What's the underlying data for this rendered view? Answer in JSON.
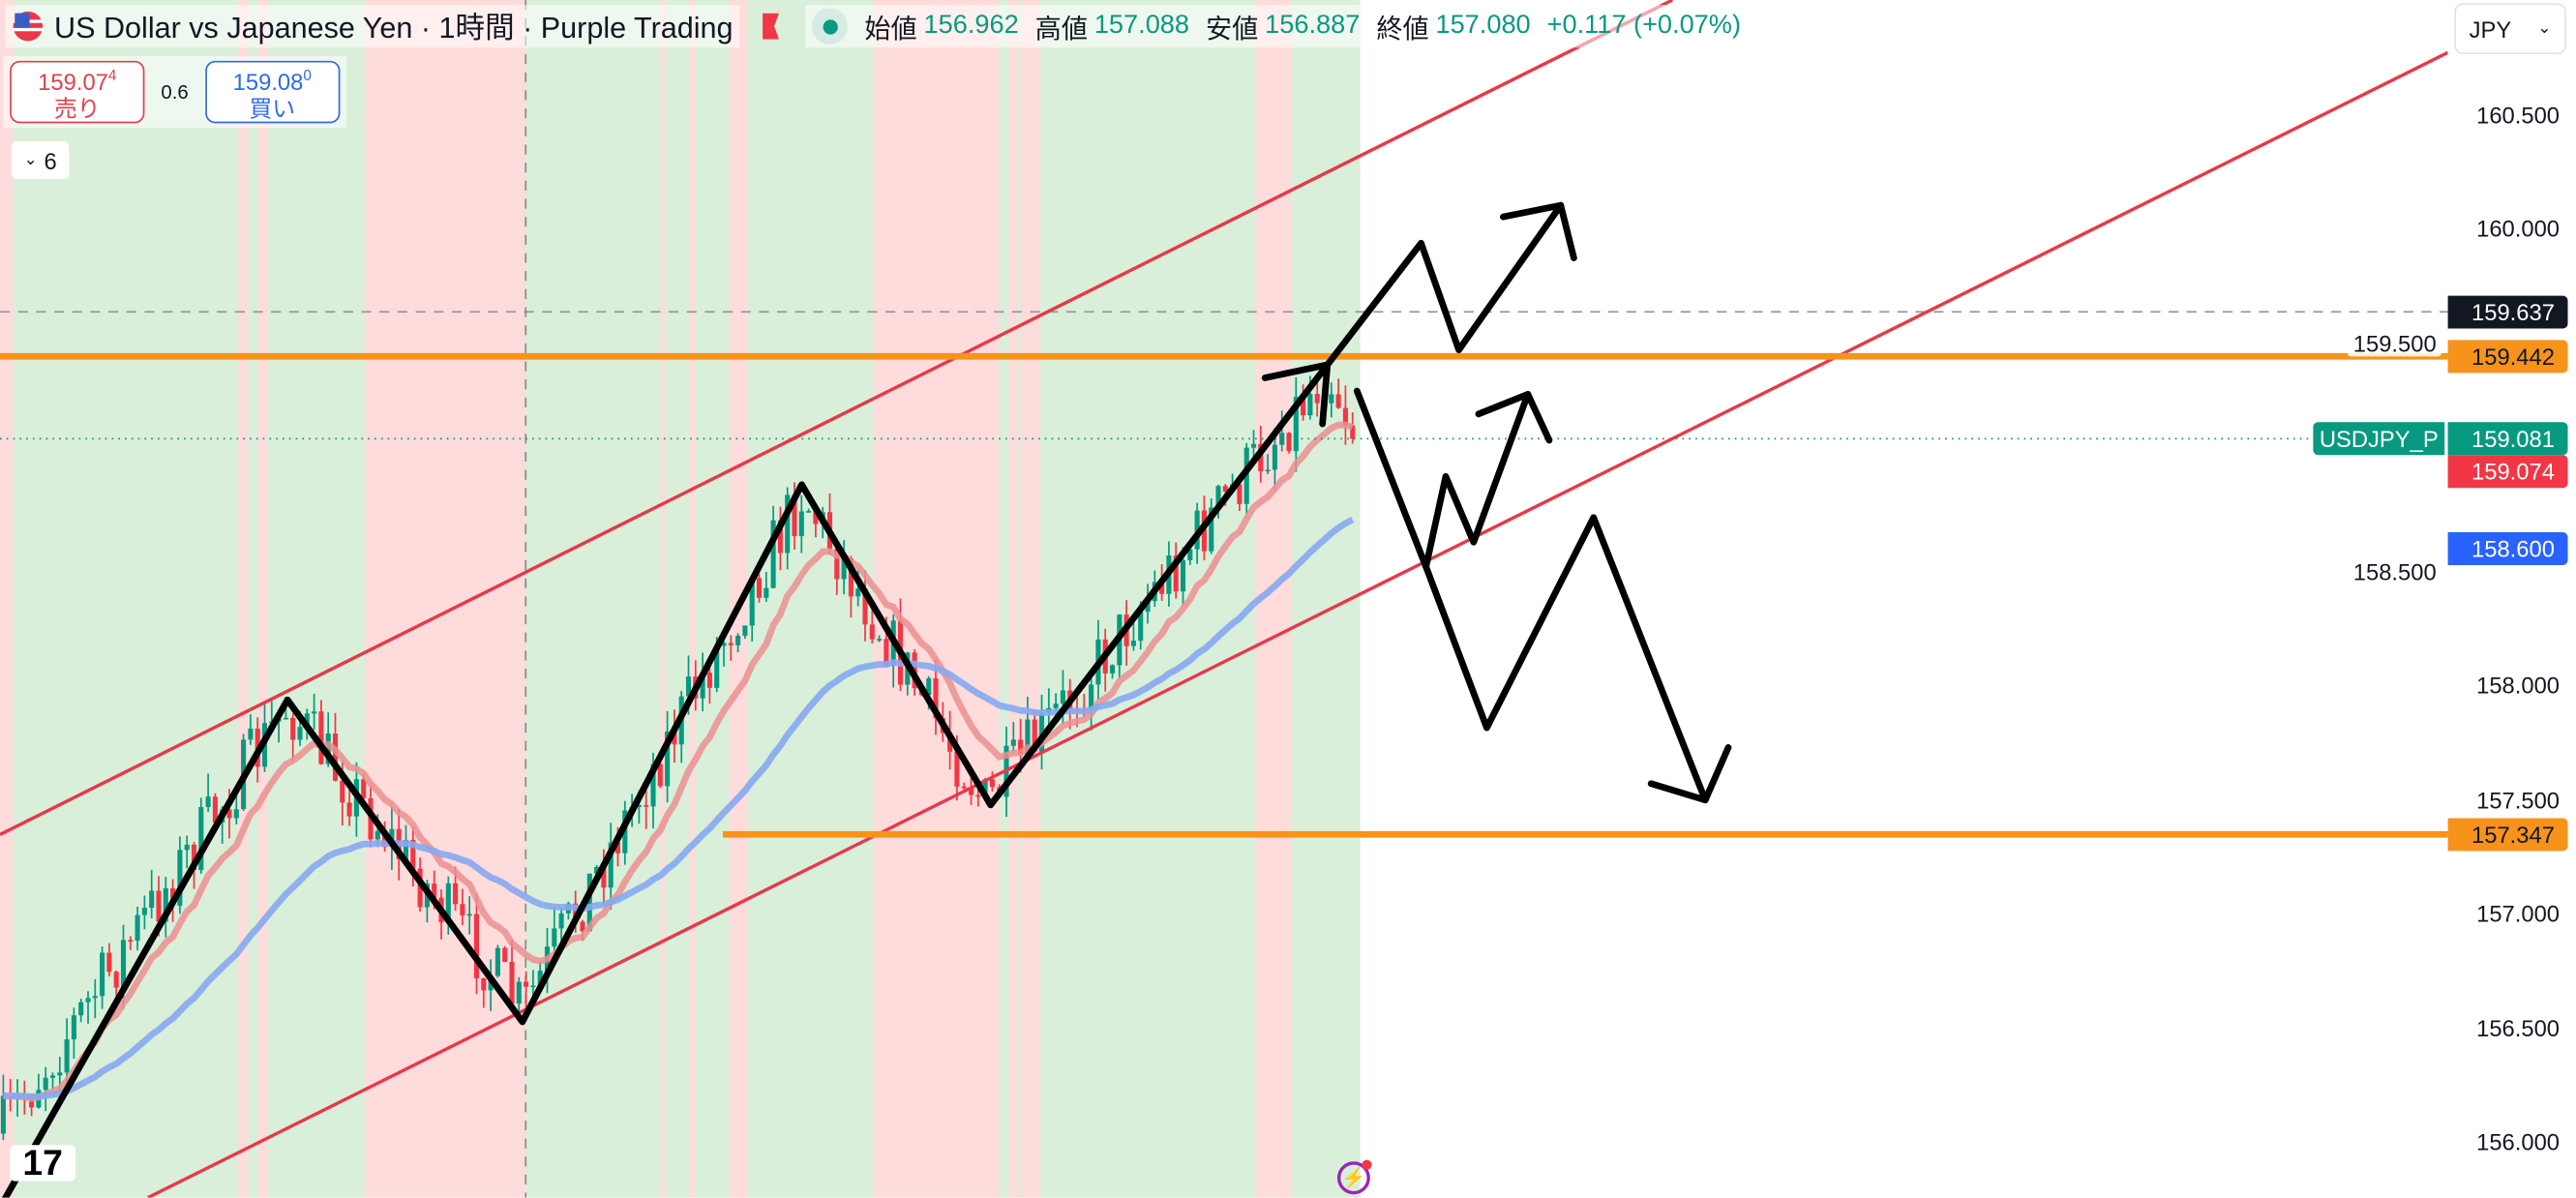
{
  "header": {
    "title": "US Dollar vs Japanese Yen · 1時間 · Purple Trading",
    "flag_icon": "us-flag-icon",
    "ohlc": {
      "open_label": "始値",
      "open": "156.962",
      "high_label": "高値",
      "high": "157.088",
      "low_label": "安値",
      "low": "156.887",
      "close_label": "終値",
      "close": "157.080",
      "change": "+0.117 (+0.07%)"
    }
  },
  "trade": {
    "sell_price": "159.07",
    "sell_sup": "4",
    "sell_label": "売り",
    "spread": "0.6",
    "buy_price": "159.08",
    "buy_sup": "0",
    "buy_label": "買い"
  },
  "indicators_toggle": {
    "label": "6"
  },
  "currency_select": {
    "value": "JPY"
  },
  "price_axis": {
    "ticks": [
      "160.500",
      "160.000",
      "159.500",
      "158.500",
      "158.000",
      "157.500",
      "157.000",
      "156.500",
      "156.000"
    ],
    "labels": {
      "dashed_line": "159.637",
      "resistance": "159.442",
      "symbol": "USDJPY_P",
      "last": "159.081",
      "bid": "159.074",
      "ma_slow": "158.600",
      "support": "157.347"
    }
  },
  "colors": {
    "up": "#089981",
    "down": "#f23645",
    "orange": "#f7931a",
    "channel": "#e8384a",
    "ma_fast": "#eb8f8f",
    "ma_slow": "#86a9ef",
    "bg_red": "#ffdcdc",
    "bg_green": "#d9efd9"
  }
}
